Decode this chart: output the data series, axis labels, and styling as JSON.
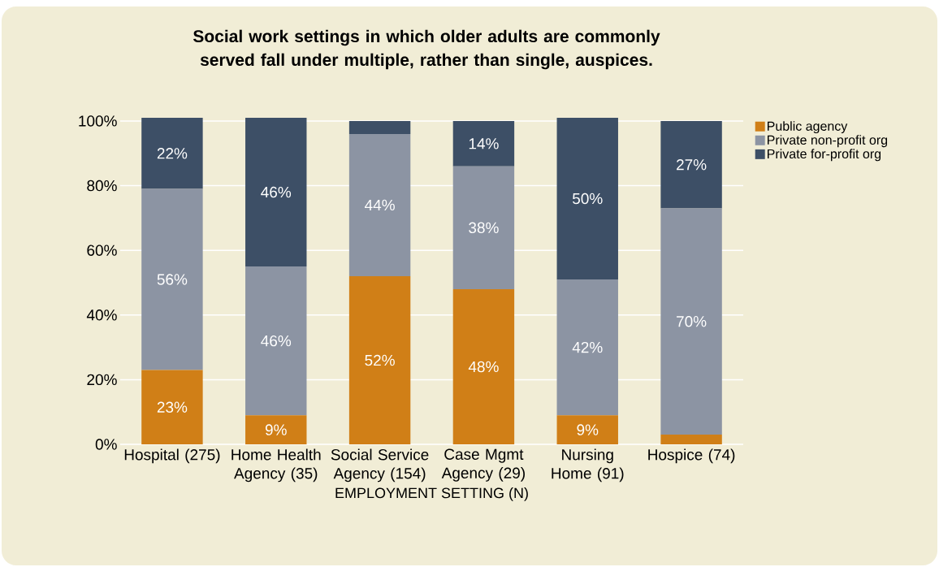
{
  "chart_data": {
    "type": "bar",
    "stacked": true,
    "title": "Social work settings in which older adults are commonly served fall under multiple, rather than single, auspices.",
    "xlabel": "EMPLOYMENT SETTING (N)",
    "categories": [
      "Hospital (275)",
      "Home Health Agency (35)",
      "Social Service Agency (154)",
      "Case Mgmt Agency (29)",
      "Nursing Home (91)",
      "Hospice (74)"
    ],
    "series": [
      {
        "name": "Public agency",
        "color": "#d07f17",
        "values": [
          23,
          9,
          52,
          48,
          9,
          3
        ],
        "value_labels": [
          "23%",
          "9%",
          "52%",
          "48%",
          "9%",
          null
        ]
      },
      {
        "name": "Private non-profit org",
        "color": "#8c94a3",
        "values": [
          56,
          46,
          44,
          38,
          42,
          70
        ],
        "value_labels": [
          "56%",
          "46%",
          "44%",
          "38%",
          "42%",
          "70%"
        ]
      },
      {
        "name": "Private for-profit org",
        "color": "#3d4f66",
        "values": [
          22,
          46,
          4,
          14,
          50,
          27
        ],
        "value_labels": [
          "22%",
          "46%",
          null,
          "14%",
          "50%",
          "27%"
        ]
      }
    ],
    "ylim": [
      0,
      101
    ],
    "yticks": [
      {
        "value": 0,
        "label": "0%"
      },
      {
        "value": 20,
        "label": "20%"
      },
      {
        "value": 40,
        "label": "40%"
      },
      {
        "value": 60,
        "label": "60%"
      },
      {
        "value": 80,
        "label": "80%"
      },
      {
        "value": 100,
        "label": "100%"
      }
    ],
    "grid": "y",
    "legend": "top right"
  }
}
